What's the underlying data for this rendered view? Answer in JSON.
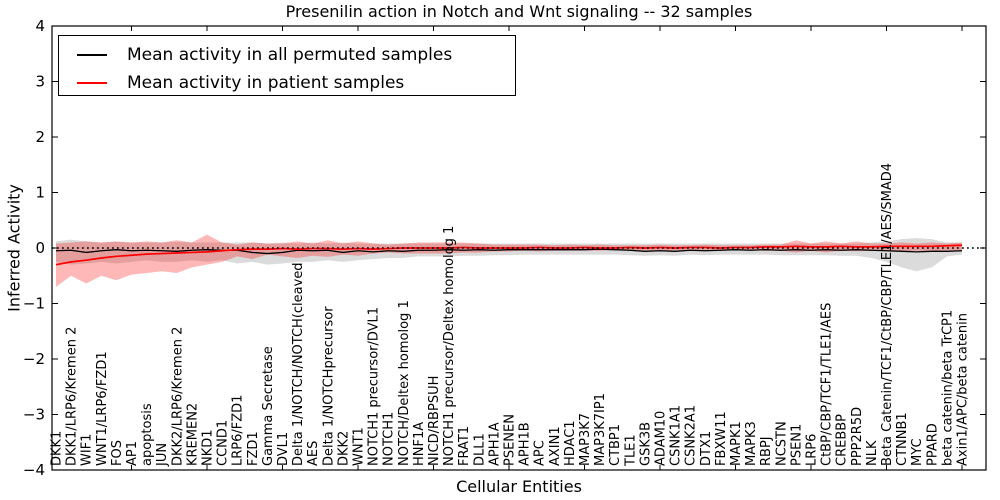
{
  "figure": {
    "title": "Presenilin action in Notch and Wnt signaling -- 32 samples",
    "xlabel": "Cellular Entities",
    "ylabel": "Inferred Activity"
  },
  "chart_data": {
    "type": "line",
    "title": "Presenilin action in Notch and Wnt signaling -- 32 samples",
    "xlabel": "Cellular Entities",
    "ylabel": "Inferred Activity",
    "ylim": [
      -4,
      4
    ],
    "yticks": [
      4,
      3,
      2,
      1,
      0,
      -1,
      -2,
      -3,
      -4
    ],
    "xtick_step": 5,
    "xtick_label_rotation": 90,
    "grid": false,
    "legend_position": "upper left",
    "zero_reference_line": {
      "y": 0,
      "style": "dotted",
      "color": "#000000"
    },
    "categories": [
      "DKK1",
      "DKK1/LRP6/Kremen 2",
      "WIF1",
      "WNT1/LRP6/FZD1",
      "FOS",
      "AP1",
      "apoptosis",
      "JUN",
      "DKK2/LRP6/Kremen 2",
      "KREMEN2",
      "NKD1",
      "CCND1",
      "LRP6/FZD1",
      "FZD1",
      "Gamma Secretase",
      "DVL1",
      "Delta 1/NOTCH/NOTCH(cleaved",
      "AES",
      "Delta 1/NOTCHprecursor",
      "DKK2",
      "WNT1",
      "NOTCH1 precursor/DVL1",
      "NOTCH1",
      "NOTCH/Deltex homolog 1",
      "HNF1A",
      "NICD/RBPSUH",
      "NOTCH1 precursor/Deltex homolog 1",
      "FRAT1",
      "DLL1",
      "APH1A",
      "PSENEN",
      "APH1B",
      "APC",
      "AXIN1",
      "HDAC1",
      "MAP3K7",
      "MAP3K7IP1",
      "CTBP1",
      "TLE1",
      "GSK3B",
      "ADAM10",
      "CSNK1A1",
      "CSNK2A1",
      "DTX1",
      "FBXW11",
      "MAPK1",
      "MAPK3",
      "RBPJ",
      "NCSTN",
      "PSEN1",
      "LRP6",
      "CtBP/CBP/TCF1/TLE1/AES",
      "CREBBP",
      "PPP2R5D",
      "NLK",
      "Beta Catenin/TCF1/CtBP/CBP/TLE1/AES/SMAD4",
      "CTNNB1",
      "MYC",
      "PPARD",
      "beta catenin/beta TrCP1",
      "Axin1/APC/beta catenin"
    ],
    "series": [
      {
        "name": "Mean activity in all permuted samples",
        "color": "#000000",
        "line_style": "solid",
        "values": [
          -0.05,
          -0.04,
          -0.08,
          -0.05,
          -0.03,
          -0.05,
          -0.04,
          -0.05,
          -0.06,
          -0.04,
          -0.03,
          -0.04,
          -0.04,
          -0.08,
          -0.1,
          -0.08,
          -0.04,
          -0.05,
          -0.04,
          -0.08,
          -0.05,
          -0.07,
          -0.05,
          -0.06,
          -0.04,
          -0.04,
          -0.03,
          -0.04,
          -0.03,
          -0.04,
          -0.03,
          -0.03,
          -0.03,
          -0.03,
          -0.03,
          -0.03,
          -0.02,
          -0.03,
          -0.04,
          -0.06,
          -0.05,
          -0.06,
          -0.04,
          -0.05,
          -0.04,
          -0.03,
          -0.04,
          -0.03,
          -0.04,
          -0.03,
          -0.04,
          -0.03,
          -0.04,
          -0.03,
          -0.04,
          -0.05,
          -0.06,
          -0.07,
          -0.06,
          -0.06,
          -0.05
        ],
        "band": {
          "label": "permuted-samples-spread",
          "color": "#000000",
          "opacity": 0.14,
          "upper": [
            0.12,
            0.15,
            0.12,
            0.1,
            0.11,
            0.1,
            0.1,
            0.1,
            0.11,
            0.1,
            0.1,
            0.1,
            0.1,
            0.1,
            0.08,
            0.1,
            0.08,
            0.1,
            0.08,
            0.1,
            0.08,
            0.08,
            0.08,
            0.08,
            0.08,
            0.08,
            0.08,
            0.08,
            0.08,
            0.08,
            0.08,
            0.08,
            0.08,
            0.08,
            0.08,
            0.08,
            0.08,
            0.08,
            0.08,
            0.08,
            0.08,
            0.08,
            0.08,
            0.08,
            0.08,
            0.08,
            0.08,
            0.08,
            0.08,
            0.08,
            0.08,
            0.08,
            0.08,
            0.08,
            0.1,
            0.12,
            0.16,
            0.18,
            0.16,
            0.1,
            0.1
          ],
          "lower": [
            -0.25,
            -0.3,
            -0.28,
            -0.25,
            -0.28,
            -0.25,
            -0.22,
            -0.25,
            -0.25,
            -0.22,
            -0.25,
            -0.22,
            -0.28,
            -0.25,
            -0.3,
            -0.28,
            -0.25,
            -0.25,
            -0.22,
            -0.25,
            -0.22,
            -0.2,
            -0.18,
            -0.18,
            -0.15,
            -0.15,
            -0.15,
            -0.14,
            -0.14,
            -0.13,
            -0.13,
            -0.12,
            -0.12,
            -0.12,
            -0.12,
            -0.12,
            -0.12,
            -0.12,
            -0.13,
            -0.14,
            -0.13,
            -0.14,
            -0.12,
            -0.13,
            -0.12,
            -0.12,
            -0.12,
            -0.12,
            -0.13,
            -0.13,
            -0.13,
            -0.13,
            -0.14,
            -0.14,
            -0.18,
            -0.25,
            -0.35,
            -0.42,
            -0.35,
            -0.15,
            -0.12
          ]
        }
      },
      {
        "name": "Mean activity in patient samples",
        "color": "#ff0000",
        "line_style": "solid",
        "values": [
          -0.3,
          -0.25,
          -0.22,
          -0.18,
          -0.15,
          -0.13,
          -0.11,
          -0.1,
          -0.09,
          -0.08,
          -0.07,
          -0.05,
          -0.03,
          -0.02,
          -0.02,
          -0.01,
          -0.02,
          -0.01,
          -0.01,
          -0.02,
          -0.01,
          -0.02,
          -0.01,
          0.0,
          0.0,
          0.0,
          0.0,
          0.01,
          0.0,
          0.0,
          0.0,
          0.0,
          0.01,
          0.0,
          0.0,
          0.01,
          0.0,
          0.0,
          0.01,
          0.0,
          0.01,
          0.0,
          0.01,
          0.01,
          0.0,
          0.01,
          0.01,
          0.02,
          0.02,
          0.03,
          0.02,
          0.02,
          0.03,
          0.02,
          0.02,
          0.03,
          0.03,
          0.03,
          0.03,
          0.04,
          0.05
        ],
        "band": {
          "label": "patient-samples-spread",
          "color": "#ff0000",
          "opacity": 0.28,
          "upper": [
            0.08,
            0.1,
            0.12,
            0.1,
            0.12,
            0.1,
            0.12,
            0.1,
            0.14,
            0.1,
            0.24,
            0.1,
            0.06,
            0.1,
            0.08,
            0.08,
            0.12,
            0.08,
            0.14,
            0.08,
            0.12,
            0.08,
            0.06,
            0.08,
            0.1,
            0.1,
            0.1,
            0.1,
            0.08,
            0.06,
            0.06,
            0.06,
            0.06,
            0.05,
            0.06,
            0.05,
            0.06,
            0.05,
            0.05,
            0.05,
            0.06,
            0.05,
            0.05,
            0.06,
            0.05,
            0.05,
            0.05,
            0.06,
            0.06,
            0.14,
            0.08,
            0.12,
            0.08,
            0.12,
            0.08,
            0.08,
            0.1,
            0.08,
            0.1,
            0.08,
            0.1
          ],
          "lower": [
            -0.7,
            -0.5,
            -0.64,
            -0.5,
            -0.58,
            -0.48,
            -0.45,
            -0.42,
            -0.45,
            -0.35,
            -0.3,
            -0.25,
            -0.15,
            -0.2,
            -0.12,
            -0.15,
            -0.18,
            -0.14,
            -0.16,
            -0.12,
            -0.14,
            -0.1,
            -0.08,
            -0.1,
            -0.1,
            -0.1,
            -0.1,
            -0.08,
            -0.08,
            -0.06,
            -0.06,
            -0.05,
            -0.06,
            -0.05,
            -0.05,
            -0.05,
            -0.05,
            -0.04,
            -0.05,
            -0.04,
            -0.05,
            -0.04,
            -0.04,
            -0.05,
            -0.04,
            -0.04,
            -0.04,
            -0.05,
            -0.05,
            -0.08,
            -0.05,
            -0.08,
            -0.05,
            -0.06,
            -0.05,
            -0.05,
            -0.06,
            -0.05,
            -0.06,
            -0.04,
            -0.04
          ]
        }
      }
    ]
  }
}
